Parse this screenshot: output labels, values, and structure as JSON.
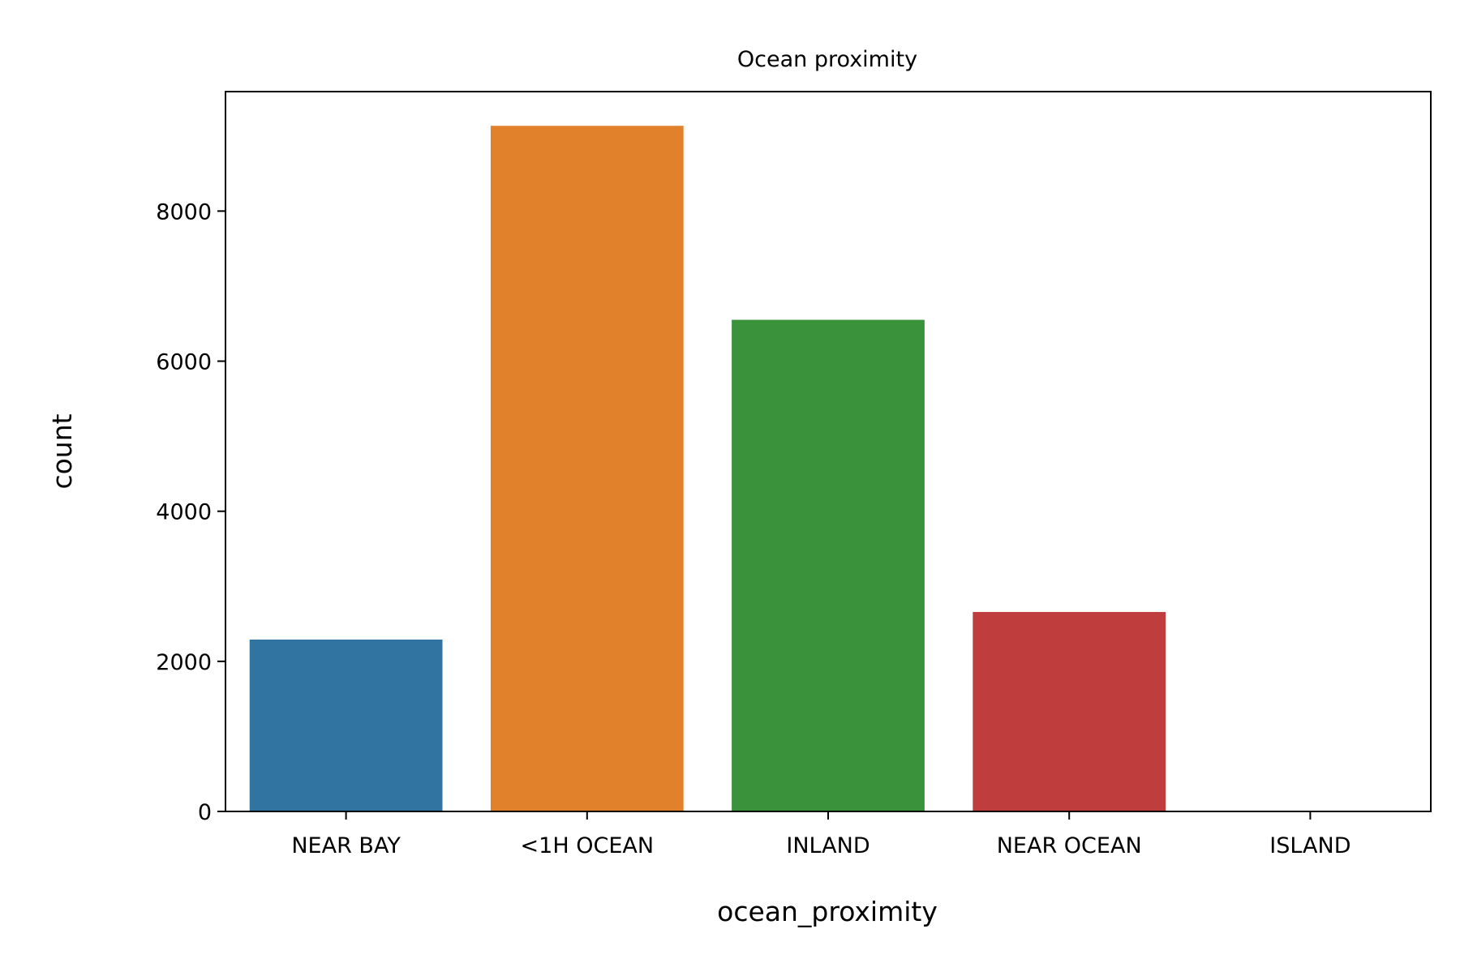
{
  "chart_data": {
    "type": "bar",
    "title": "Ocean proximity",
    "xlabel": "ocean_proximity",
    "ylabel": "count",
    "categories": [
      "NEAR BAY",
      "<1H OCEAN",
      "INLAND",
      "NEAR OCEAN",
      "ISLAND"
    ],
    "values": [
      2290,
      9136,
      6551,
      2658,
      5
    ],
    "colors": [
      "#3274a1",
      "#e1812c",
      "#3a923a",
      "#c03d3e",
      "#9372b2"
    ],
    "ylim": [
      0,
      9592
    ],
    "yticks": [
      0,
      2000,
      4000,
      6000,
      8000
    ],
    "ytick_labels": [
      "0",
      "2000",
      "4000",
      "6000",
      "8000"
    ],
    "grid": false,
    "legend": "none"
  }
}
